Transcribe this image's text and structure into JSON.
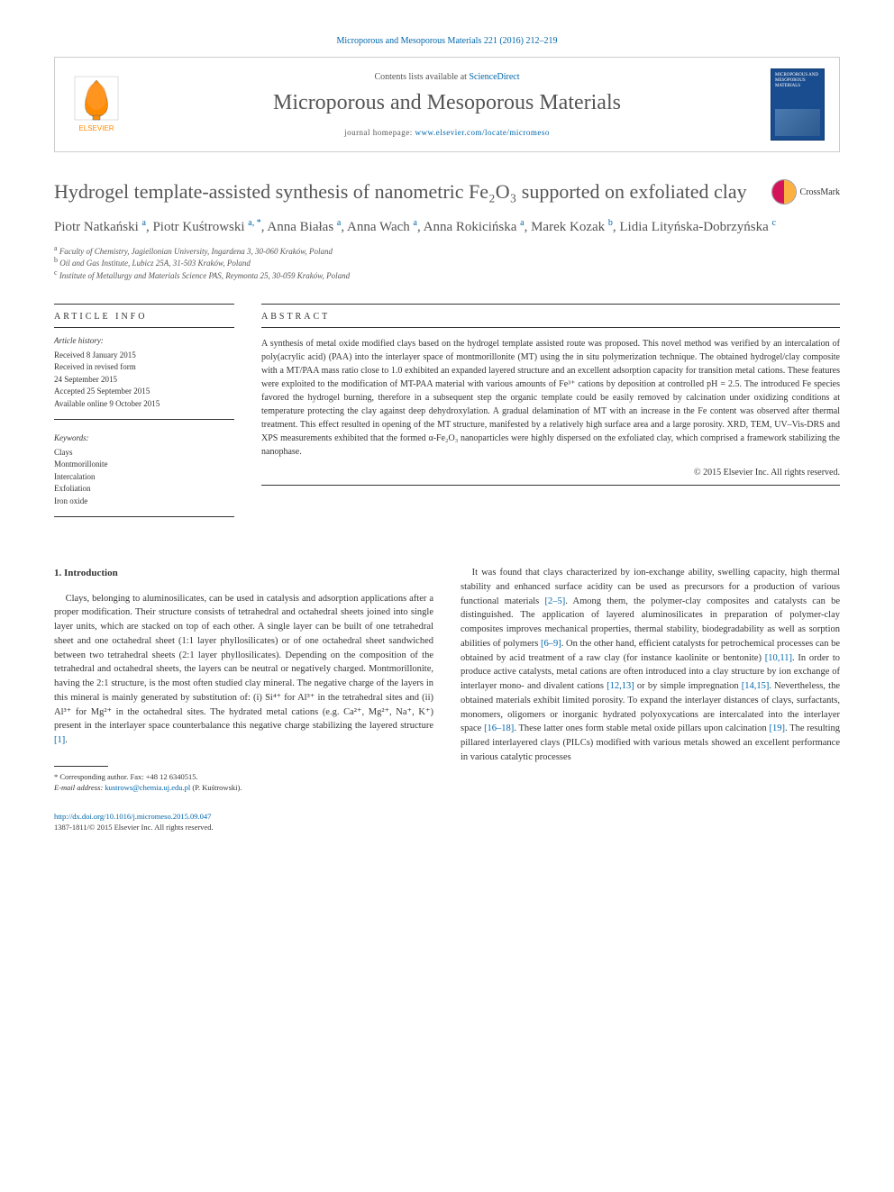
{
  "citation": "Microporous and Mesoporous Materials 221 (2016) 212–219",
  "header": {
    "contents_prefix": "Contents lists available at ",
    "contents_link": "ScienceDirect",
    "journal_name": "Microporous and Mesoporous Materials",
    "homepage_prefix": "journal homepage: ",
    "homepage_url": "www.elsevier.com/locate/micromeso",
    "publisher": "ELSEVIER",
    "cover_title": "MICROPOROUS AND MESOPOROUS MATERIALS"
  },
  "title": "Hydrogel template-assisted synthesis of nanometric Fe₂O₃ supported on exfoliated clay",
  "crossmark_label": "CrossMark",
  "authors_html": "Piotr Natkański <sup>a</sup>, Piotr Kuśtrowski <sup>a, *</sup>, Anna Białas <sup>a</sup>, Anna Wach <sup>a</sup>, Anna Rokicińska <sup>a</sup>, Marek Kozak <sup>b</sup>, Lidia Lityńska-Dobrzyńska <sup>c</sup>",
  "affiliations": [
    {
      "sup": "a",
      "text": "Faculty of Chemistry, Jagiellonian University, Ingardena 3, 30-060 Kraków, Poland"
    },
    {
      "sup": "b",
      "text": "Oil and Gas Institute, Lubicz 25A, 31-503 Kraków, Poland"
    },
    {
      "sup": "c",
      "text": "Institute of Metallurgy and Materials Science PAS, Reymonta 25, 30-059 Kraków, Poland"
    }
  ],
  "article_info": {
    "heading": "ARTICLE INFO",
    "history_label": "Article history:",
    "history": [
      "Received 8 January 2015",
      "Received in revised form",
      "24 September 2015",
      "Accepted 25 September 2015",
      "Available online 9 October 2015"
    ],
    "keywords_label": "Keywords:",
    "keywords": [
      "Clays",
      "Montmorillonite",
      "Intercalation",
      "Exfoliation",
      "Iron oxide"
    ]
  },
  "abstract": {
    "heading": "ABSTRACT",
    "text": "A synthesis of metal oxide modified clays based on the hydrogel template assisted route was proposed. This novel method was verified by an intercalation of poly(acrylic acid) (PAA) into the interlayer space of montmorillonite (MT) using the in situ polymerization technique. The obtained hydrogel/clay composite with a MT/PAA mass ratio close to 1.0 exhibited an expanded layered structure and an excellent adsorption capacity for transition metal cations. These features were exploited to the modification of MT-PAA material with various amounts of Fe³⁺ cations by deposition at controlled pH = 2.5. The introduced Fe species favored the hydrogel burning, therefore in a subsequent step the organic template could be easily removed by calcination under oxidizing conditions at temperature protecting the clay against deep dehydroxylation. A gradual delamination of MT with an increase in the Fe content was observed after thermal treatment. This effect resulted in opening of the MT structure, manifested by a relatively high surface area and a large porosity. XRD, TEM, UV–Vis-DRS and XPS measurements exhibited that the formed α-Fe₂O₃ nanoparticles were highly dispersed on the exfoliated clay, which comprised a framework stabilizing the nanophase.",
    "copyright": "© 2015 Elsevier Inc. All rights reserved."
  },
  "body": {
    "section_heading": "1. Introduction",
    "col1_p1": "Clays, belonging to aluminosilicates, can be used in catalysis and adsorption applications after a proper modification. Their structure consists of tetrahedral and octahedral sheets joined into single layer units, which are stacked on top of each other. A single layer can be built of one tetrahedral sheet and one octahedral sheet (1:1 layer phyllosilicates) or of one octahedral sheet sandwiched between two tetrahedral sheets (2:1 layer phyllosilicates). Depending on the composition of the tetrahedral and octahedral sheets, the layers can be neutral or negatively charged. Montmorillonite, having the 2:1 structure, is the most often studied clay mineral. The negative charge of the layers in this mineral is mainly generated by substitution of: (i) Si⁴⁺ for Al³⁺ in the tetrahedral sites and (ii) Al³⁺ for Mg²⁺ in the octahedral sites. The hydrated metal cations (e.g. Ca²⁺, Mg²⁺, Na⁺, K⁺) present in the interlayer space counterbalance this negative charge stabilizing the layered structure ",
    "col1_ref1": "[1]",
    "col1_p1_end": ".",
    "col2_p1a": "It was found that clays characterized by ion-exchange ability, swelling capacity, high thermal stability and enhanced surface acidity can be used as precursors for a production of various functional materials ",
    "col2_ref1": "[2–5]",
    "col2_p1b": ". Among them, the polymer-clay composites and catalysts can be distinguished. The application of layered aluminosilicates in preparation of polymer-clay composites improves mechanical properties, thermal stability, biodegradability as well as sorption abilities of polymers ",
    "col2_ref2": "[6–9]",
    "col2_p1c": ". On the other hand, efficient catalysts for petrochemical processes can be obtained by acid treatment of a raw clay (for instance kaolinite or bentonite) ",
    "col2_ref3": "[10,11]",
    "col2_p1d": ". In order to produce active catalysts, metal cations are often introduced into a clay structure by ion exchange of interlayer mono- and divalent cations ",
    "col2_ref4": "[12,13]",
    "col2_p1e": " or by simple impregnation ",
    "col2_ref5": "[14,15]",
    "col2_p1f": ". Nevertheless, the obtained materials exhibit limited porosity. To expand the interlayer distances of clays, surfactants, monomers, oligomers or inorganic hydrated polyoxycations are intercalated into the interlayer space ",
    "col2_ref6": "[16–18]",
    "col2_p1g": ". These latter ones form stable metal oxide pillars upon calcination ",
    "col2_ref7": "[19]",
    "col2_p1h": ". The resulting pillared interlayered clays (PILCs) modified with various metals showed an excellent performance in various catalytic processes"
  },
  "footnote": {
    "corresponding": "* Corresponding author. Fax: +48 12 6340515.",
    "email_label": "E-mail address: ",
    "email": "kustrows@chemia.uj.edu.pl",
    "email_suffix": " (P. Kuśtrowski)."
  },
  "footer": {
    "doi": "http://dx.doi.org/10.1016/j.micromeso.2015.09.047",
    "issn_copyright": "1387-1811/© 2015 Elsevier Inc. All rights reserved."
  },
  "colors": {
    "link": "#0066aa",
    "text": "#333333",
    "heading": "#555555",
    "elsevier_orange": "#ff8c00",
    "cover_blue": "#1a4d8f"
  }
}
